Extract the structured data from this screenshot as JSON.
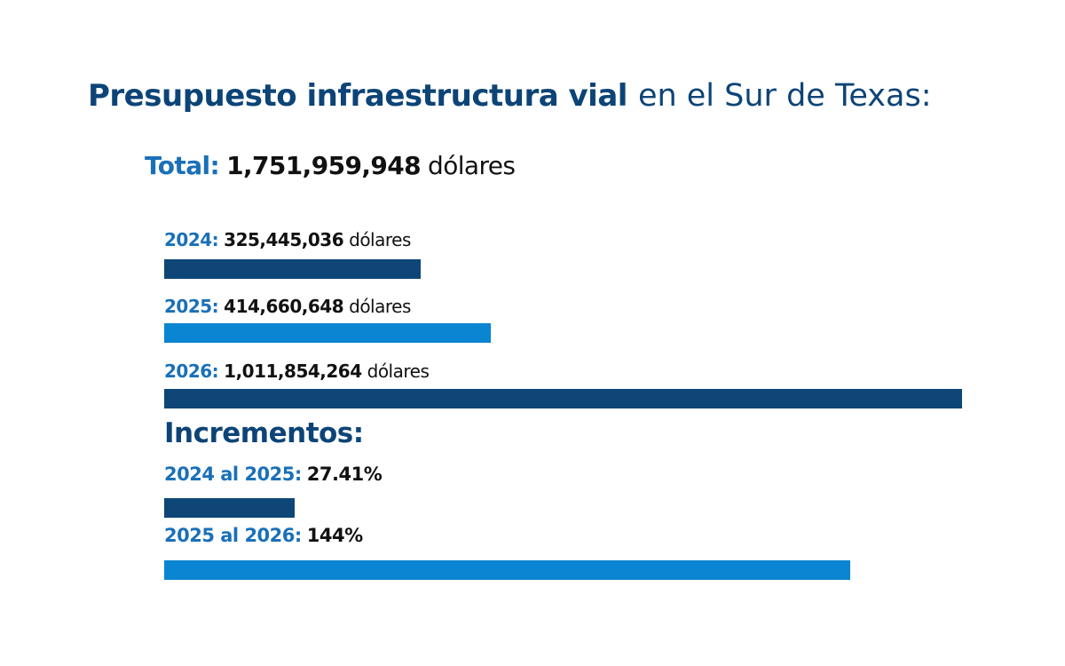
{
  "title": {
    "bold": "Presupuesto infraestructura vial",
    "light": "en el Sur de Texas:"
  },
  "total": {
    "label": "Total:",
    "value": "1,751,959,948",
    "unit": "dólares"
  },
  "chart_data": [
    {
      "type": "bar",
      "categories": [
        "2024",
        "2025",
        "2026"
      ],
      "values": [
        325445036,
        414660648,
        1011854264
      ],
      "labels": [
        {
          "year": "2024:",
          "value": "325,445,036",
          "unit": "dólares"
        },
        {
          "year": "2025:",
          "value": "414,660,648",
          "unit": "dólares"
        },
        {
          "year": "2026:",
          "value": "1,011,854,264",
          "unit": "dólares"
        }
      ],
      "colors": [
        "#0e4677",
        "#0a85d1",
        "#0e4677"
      ],
      "title": "",
      "xlabel": "",
      "ylabel": ""
    },
    {
      "type": "bar",
      "title": "Incrementos:",
      "categories": [
        "2024 al 2025",
        "2025 al 2026"
      ],
      "values": [
        27.41,
        144
      ],
      "labels": [
        {
          "year": "2024 al 2025:",
          "value": "27.41%"
        },
        {
          "year": "2025 al 2026:",
          "value": "144%"
        }
      ],
      "colors": [
        "#0e4677",
        "#0a85d1"
      ],
      "xlabel": "",
      "ylabel": ""
    }
  ]
}
